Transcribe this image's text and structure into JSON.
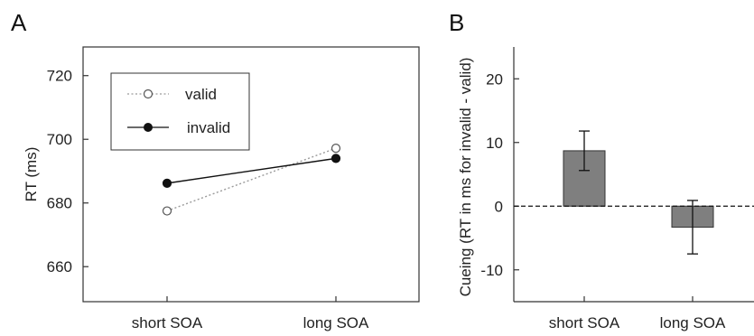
{
  "panels": {
    "a_letter": "A",
    "b_letter": "B"
  },
  "chart_data": [
    {
      "type": "line",
      "panel": "A",
      "categories": [
        "short SOA",
        "long SOA"
      ],
      "ylabel": "RT (ms)",
      "xlabel": "",
      "ylim": [
        649,
        729
      ],
      "yticks": [
        660,
        680,
        700,
        720
      ],
      "legend": {
        "placement": "top-left",
        "entries": [
          "valid",
          "invalid"
        ]
      },
      "grid": false,
      "series": [
        {
          "name": "valid",
          "values": [
            677.5,
            697.2
          ],
          "style": "dotted",
          "marker": "open-circle",
          "color": "#9a9a9a"
        },
        {
          "name": "invalid",
          "values": [
            686.2,
            694.0
          ],
          "style": "solid",
          "marker": "filled-circle",
          "color": "#111111"
        }
      ]
    },
    {
      "type": "bar",
      "panel": "B",
      "categories": [
        "short SOA",
        "long SOA"
      ],
      "values": [
        8.7,
        -3.3
      ],
      "errors": [
        3.1,
        4.2
      ],
      "ylabel": "Cueing (RT in ms for invalid - valid)",
      "xlabel": "",
      "ylim": [
        -15,
        25
      ],
      "yticks": [
        -10,
        0,
        10,
        20
      ],
      "reference_line": 0,
      "bar_color": "#7f7f7f",
      "grid": false
    }
  ]
}
